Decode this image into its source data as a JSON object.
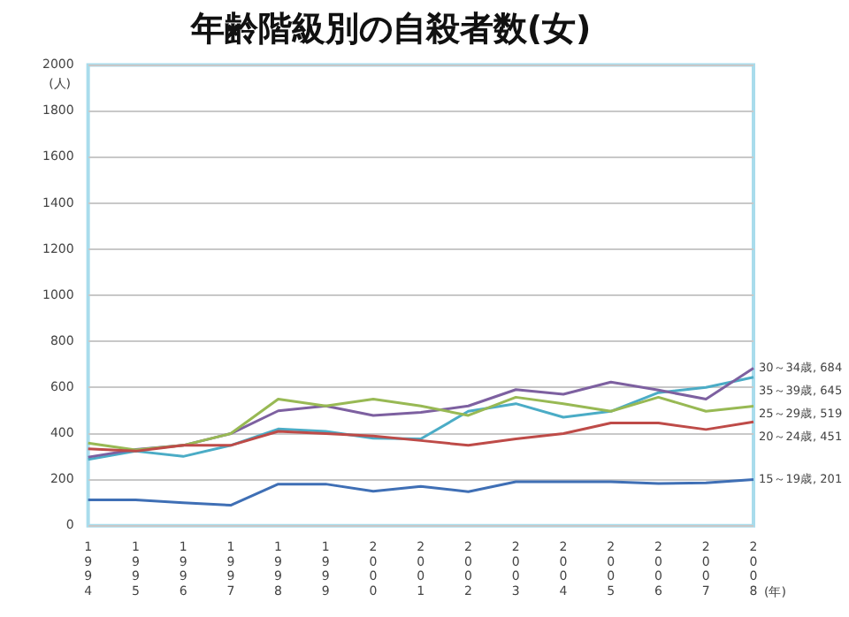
{
  "chart_data": {
    "type": "line",
    "title": "年齢階級別の自殺者数(女)",
    "ylabel": "(人)",
    "xlabel": "(年)",
    "categories": [
      "1994",
      "1995",
      "1996",
      "1997",
      "1998",
      "1999",
      "2000",
      "2001",
      "2002",
      "2003",
      "2004",
      "2005",
      "2006",
      "2007",
      "2008"
    ],
    "series": [
      {
        "color": "#3f6fb5",
        "values": [
          112,
          112,
          100,
          89,
          181,
          181,
          150,
          171,
          148,
          191,
          191,
          191,
          183,
          186,
          201
        ]
      },
      {
        "color": "#be4b48",
        "values": [
          334,
          324,
          349,
          349,
          410,
          400,
          390,
          370,
          349,
          377,
          400,
          446,
          446,
          418,
          451
        ]
      },
      {
        "color": "#98b954",
        "values": [
          359,
          329,
          349,
          400,
          550,
          520,
          550,
          520,
          479,
          558,
          530,
          497,
          558,
          497,
          519
        ]
      },
      {
        "color": "#7d60a0",
        "values": [
          298,
          331,
          349,
          400,
          499,
          520,
          479,
          492,
          520,
          591,
          571,
          624,
          589,
          550,
          684
        ]
      },
      {
        "color": "#4bacc6",
        "values": [
          288,
          324,
          301,
          349,
          420,
          410,
          380,
          377,
          497,
          530,
          471,
          497,
          578,
          601,
          645
        ]
      }
    ],
    "ylim": [
      0,
      2000
    ],
    "yticks": [
      0,
      200,
      400,
      600,
      800,
      1000,
      1200,
      1400,
      1600,
      1800,
      2000
    ],
    "grid": "y",
    "legend": false,
    "marker": "none",
    "line_style": "solid",
    "annotations": [
      {
        "text": "30～34歳, 684",
        "x": "2008",
        "y": 684
      },
      {
        "text": "35～39歳, 645",
        "x": "2008",
        "y": 645
      },
      {
        "text": "25～29歳, 519",
        "x": "2008",
        "y": 519
      },
      {
        "text": "20～24歳, 451",
        "x": "2008",
        "y": 451
      },
      {
        "text": "15～19歳, 201",
        "x": "2008",
        "y": 201
      }
    ]
  }
}
